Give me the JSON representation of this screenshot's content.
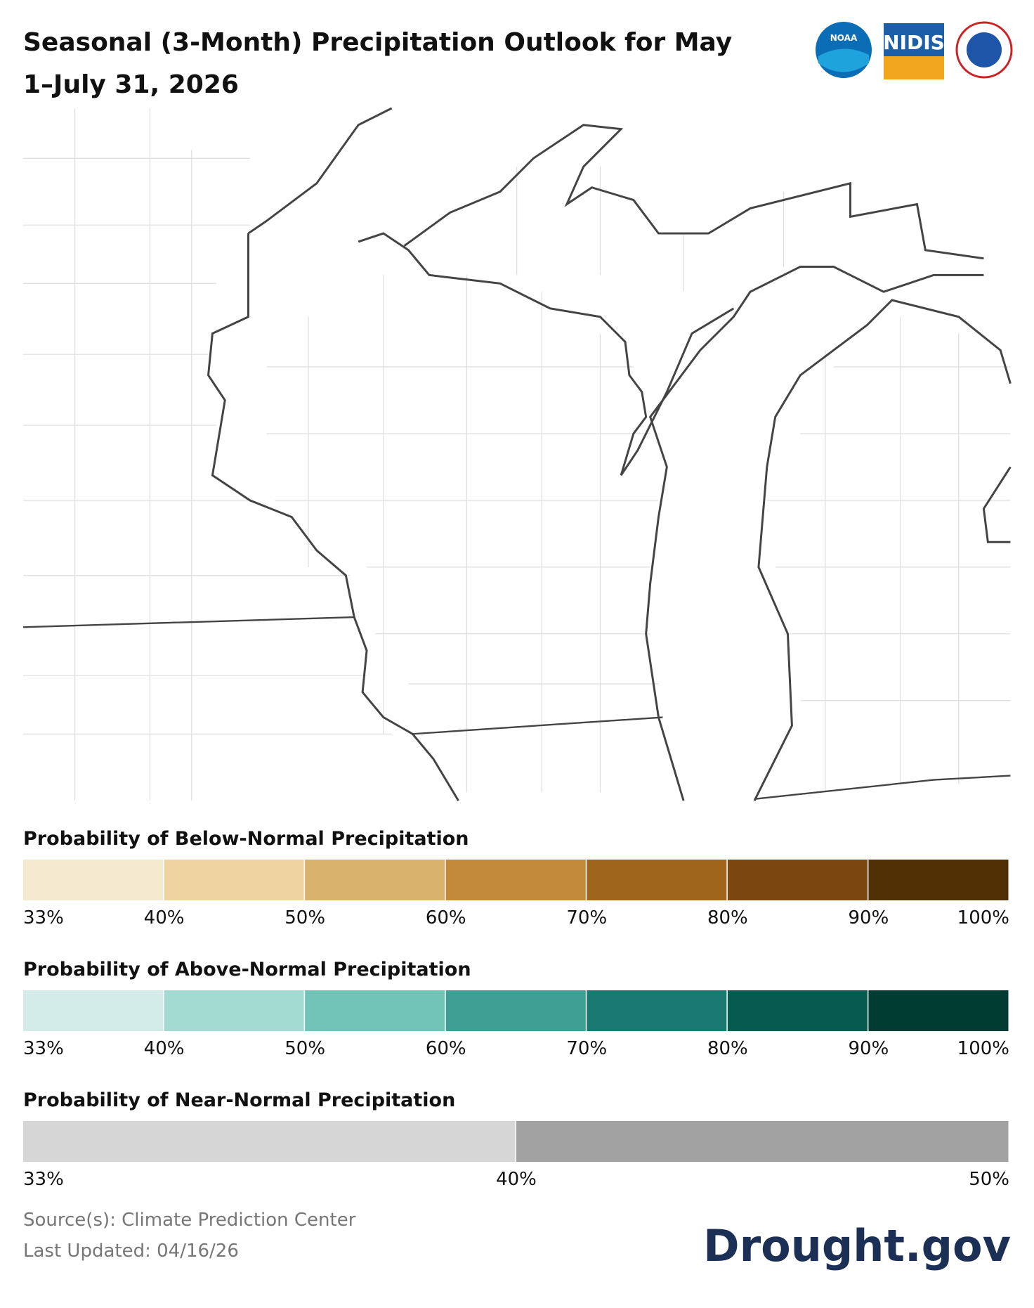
{
  "header": {
    "title_lines": [
      "Seasonal (3-Month) Precipitation Outlook for May",
      "1–July 31, 2026"
    ],
    "logos": [
      "NOAA",
      "NIDIS"
    ]
  },
  "legends": [
    {
      "title": "Probability of Below-Normal Precipitation",
      "colors": [
        "#f5ead0",
        "#edd4a1",
        "#d9b26e",
        "#c28a3a",
        "#a0651d",
        "#7c4610",
        "#513006"
      ],
      "labels": [
        "33%",
        "40%",
        "50%",
        "60%",
        "70%",
        "80%",
        "90%",
        "100%"
      ]
    },
    {
      "title": "Probability of Above-Normal Precipitation",
      "colors": [
        "#d3ecea",
        "#a3dbd3",
        "#72c3b8",
        "#3f9f95",
        "#1a7a71",
        "#065a50",
        "#003c31"
      ],
      "labels": [
        "33%",
        "40%",
        "50%",
        "60%",
        "70%",
        "80%",
        "90%",
        "100%"
      ]
    },
    {
      "title": "Probability of Near-Normal Precipitation",
      "colors": [
        "#d6d6d6",
        "#a2a2a2"
      ],
      "labels": [
        "33%",
        "40%",
        "50%"
      ]
    }
  ],
  "footer": {
    "source": "Source(s): Climate Prediction Center",
    "updated": "Last Updated: 04/16/26",
    "brand": "Drought.gov"
  }
}
